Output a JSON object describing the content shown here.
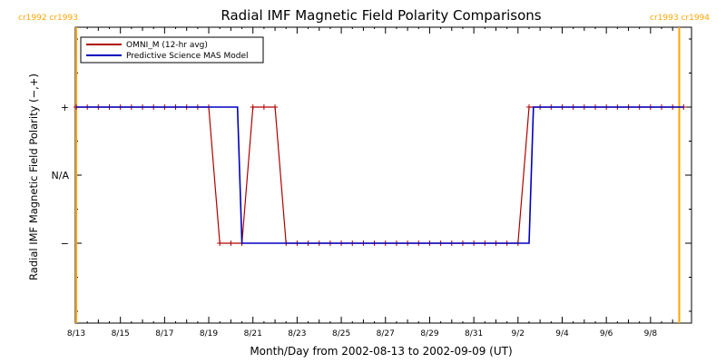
{
  "chart_data": {
    "type": "line",
    "title": "Radial IMF Magnetic Field Polarity Comparisons",
    "xlabel": "Month/Day from 2002-08-13 to 2002-09-09 (UT)",
    "ylabel": "Radial IMF Magnetic Field Polarity (−,+)",
    "x_tick_labels": [
      "8/13",
      "8/15",
      "8/17",
      "8/19",
      "8/21",
      "8/23",
      "8/25",
      "8/27",
      "8/29",
      "8/31",
      "9/2",
      "9/4",
      "9/6",
      "9/8"
    ],
    "y_tick_labels": [
      {
        "value": 1,
        "label": "+"
      },
      {
        "value": 0,
        "label": "N/A"
      },
      {
        "value": -1,
        "label": "−"
      }
    ],
    "xlim": [
      0,
      27.5
    ],
    "ylim": [
      -2,
      2
    ],
    "carrington_markers": [
      {
        "day": 0.0,
        "label": "cr1992 cr1993",
        "color": "#ffa500",
        "label_side": "left"
      },
      {
        "day": 27.3,
        "label": "cr1993 cr1994",
        "color": "#ffa500",
        "label_side": "right"
      }
    ],
    "legend_position": "top-left",
    "series": [
      {
        "name": "OMNI_M (12-hr avg)",
        "color": "#b00000",
        "marker": "plus",
        "points": [
          [
            0.0,
            1
          ],
          [
            0.5,
            1
          ],
          [
            1.0,
            1
          ],
          [
            1.5,
            1
          ],
          [
            2.0,
            1
          ],
          [
            2.5,
            1
          ],
          [
            3.0,
            1
          ],
          [
            3.5,
            1
          ],
          [
            4.0,
            1
          ],
          [
            4.5,
            1
          ],
          [
            5.0,
            1
          ],
          [
            5.5,
            1
          ],
          [
            6.0,
            1
          ],
          [
            6.5,
            -1
          ],
          [
            7.0,
            -1
          ],
          [
            7.5,
            -1
          ],
          [
            8.0,
            1
          ],
          [
            8.5,
            1
          ],
          [
            9.0,
            1
          ],
          [
            9.5,
            -1
          ],
          [
            10.0,
            -1
          ],
          [
            10.5,
            -1
          ],
          [
            11.0,
            -1
          ],
          [
            11.5,
            -1
          ],
          [
            12.0,
            -1
          ],
          [
            12.5,
            -1
          ],
          [
            13.0,
            -1
          ],
          [
            13.5,
            -1
          ],
          [
            14.0,
            -1
          ],
          [
            14.5,
            -1
          ],
          [
            15.0,
            -1
          ],
          [
            15.5,
            -1
          ],
          [
            16.0,
            -1
          ],
          [
            16.5,
            -1
          ],
          [
            17.0,
            -1
          ],
          [
            17.5,
            -1
          ],
          [
            18.0,
            -1
          ],
          [
            18.5,
            -1
          ],
          [
            19.0,
            -1
          ],
          [
            19.5,
            -1
          ],
          [
            20.0,
            -1
          ],
          [
            20.5,
            1
          ],
          [
            21.0,
            1
          ],
          [
            21.5,
            1
          ],
          [
            22.0,
            1
          ],
          [
            22.5,
            1
          ],
          [
            23.0,
            1
          ],
          [
            23.5,
            1
          ],
          [
            24.0,
            1
          ],
          [
            24.5,
            1
          ],
          [
            25.0,
            1
          ],
          [
            25.5,
            1
          ],
          [
            26.0,
            1
          ],
          [
            26.5,
            1
          ],
          [
            27.0,
            1
          ],
          [
            27.5,
            1
          ]
        ]
      },
      {
        "name": "Predictive Science MAS Model",
        "color": "#0000c0",
        "marker": "none",
        "points": [
          [
            0.0,
            1
          ],
          [
            7.3,
            1
          ],
          [
            7.5,
            -1
          ],
          [
            20.5,
            -1
          ],
          [
            20.7,
            1
          ],
          [
            27.5,
            1
          ]
        ]
      }
    ]
  }
}
